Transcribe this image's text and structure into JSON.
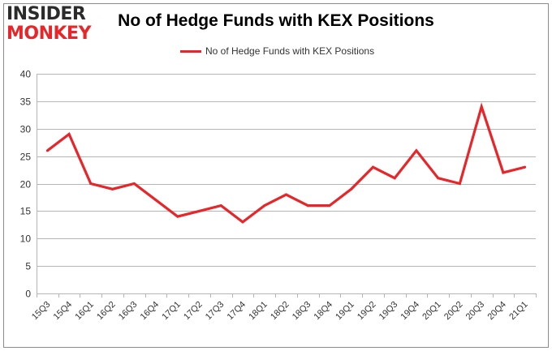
{
  "logo": {
    "line1": "INSIDER",
    "line2": "MONKEY"
  },
  "colors": {
    "series": "#e8262a",
    "grid": "#b5b5b5",
    "axis_text": "#333333",
    "frame": "#8c8c8c"
  },
  "chart_data": {
    "type": "line",
    "title": "No of Hedge Funds with KEX Positions",
    "legend_position": "top-center",
    "grid": true,
    "xlabel": "",
    "ylabel": "",
    "ylim": [
      0,
      40
    ],
    "yticks": [
      0,
      5,
      10,
      15,
      20,
      25,
      30,
      35,
      40
    ],
    "categories": [
      "15Q3",
      "15Q4",
      "16Q1",
      "16Q2",
      "16Q3",
      "16Q4",
      "17Q1",
      "17Q2",
      "17Q3",
      "17Q4",
      "18Q1",
      "18Q2",
      "18Q3",
      "18Q4",
      "19Q1",
      "19Q2",
      "19Q3",
      "19Q4",
      "20Q1",
      "20Q2",
      "20Q3",
      "20Q4",
      "21Q1"
    ],
    "series": [
      {
        "name": "No of Hedge Funds with KEX Positions",
        "values": [
          26,
          29,
          20,
          19,
          20,
          17,
          14,
          15,
          16,
          13,
          16,
          18,
          16,
          16,
          19,
          23,
          21,
          26,
          21,
          20,
          34,
          22,
          23
        ]
      }
    ]
  }
}
